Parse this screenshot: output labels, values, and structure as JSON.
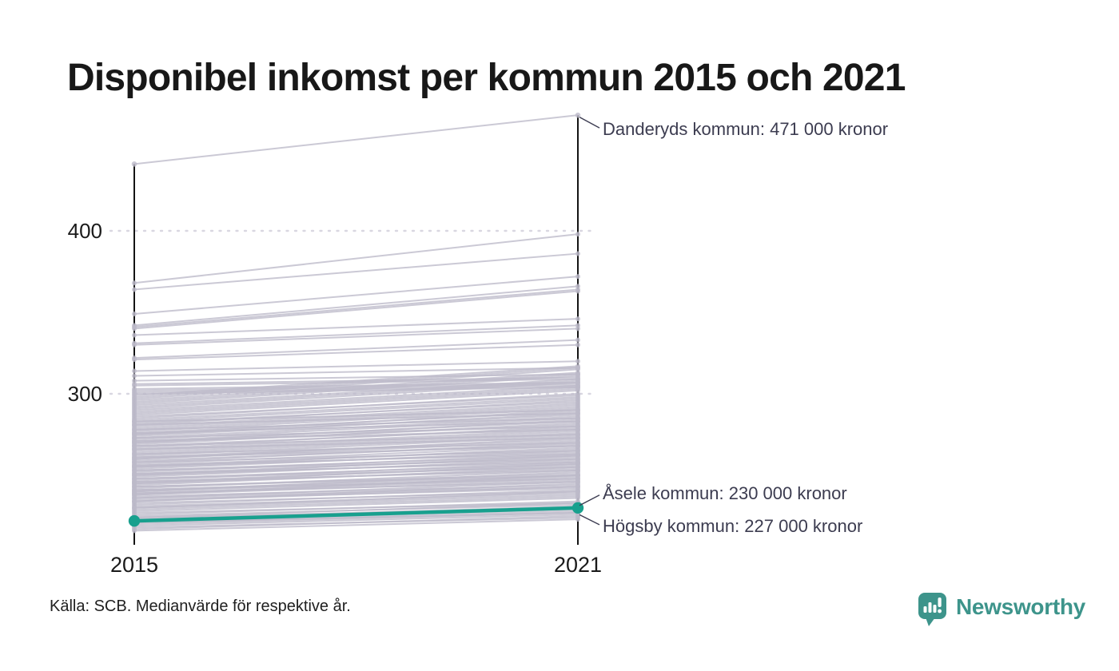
{
  "title": "Disponibel inkomst per kommun 2015 och 2021",
  "source": "Källa: SCB. Medianvärde för respektive år.",
  "branding": {
    "logo_text": "Newsworthy",
    "logo_icon": "newsworthy-bubble-barchart-icon",
    "brand_color": "#3d948b"
  },
  "colors": {
    "background": "#ffffff",
    "line_gray": "#bdbac9",
    "highlight_teal": "#18a08e",
    "axis_black": "#141414",
    "grid_gray": "#d9d7e1",
    "annotation_text": "#3c3c50"
  },
  "chart_data": {
    "type": "line",
    "subtype": "slope-chart",
    "title": "Disponibel inkomst per kommun 2015 och 2021",
    "x": [
      2015,
      2021
    ],
    "x_labels": [
      "2015",
      "2021"
    ],
    "y_ticks": [
      300,
      400
    ],
    "ylim": [
      207,
      480
    ],
    "y_unit": "tusen kronor (medianvärde disponibel inkomst)",
    "grid": "dotted horizontal lines at y ticks",
    "legend": "none",
    "annotations": [
      {
        "text": "Danderyds kommun: 471 000 kronor",
        "series": "Danderyds kommun",
        "year": 2021,
        "value": 471
      },
      {
        "text": "Åsele kommun: 230 000 kronor",
        "series": "Åsele kommun",
        "year": 2021,
        "value": 230
      },
      {
        "text": "Högsby kommun: 227 000 kronor",
        "series": "Högsby kommun",
        "year": 2021,
        "value": 227
      }
    ],
    "named_series": [
      {
        "name": "Danderyds kommun",
        "values": [
          441,
          471
        ],
        "highlighted": false
      },
      {
        "name": "Högsby kommun",
        "values": [
          221,
          227
        ],
        "highlighted": false
      },
      {
        "name": "Åsele kommun",
        "values": [
          222,
          230
        ],
        "highlighted": true
      }
    ],
    "background_series_note": "approx. 290 unlabeled municipality lines; estimated value pairs [v2015, v2021] in thousands of kronor",
    "background_series": [
      [
        368,
        398
      ],
      [
        364,
        386
      ],
      [
        349,
        372
      ],
      [
        342,
        366
      ],
      [
        341,
        364
      ],
      [
        340,
        363
      ],
      [
        336,
        346
      ],
      [
        331,
        342
      ],
      [
        330,
        340
      ],
      [
        322,
        333
      ],
      [
        321,
        330
      ],
      [
        314,
        320
      ],
      [
        311,
        316
      ],
      [
        308,
        312
      ],
      [
        306,
        310
      ],
      [
        305,
        309
      ],
      [
        303,
        307
      ],
      [
        302,
        306
      ],
      [
        301,
        305
      ],
      [
        300,
        304
      ],
      [
        216,
        223
      ],
      [
        217,
        225
      ],
      [
        218,
        224
      ],
      [
        219,
        226
      ],
      [
        220,
        227
      ],
      [
        221,
        228
      ],
      [
        222,
        229
      ],
      [
        223,
        231
      ],
      [
        224,
        230
      ],
      [
        224,
        233
      ],
      [
        225,
        232
      ],
      [
        226,
        234
      ],
      [
        227,
        233
      ],
      [
        228,
        236
      ],
      [
        229,
        237
      ],
      [
        230,
        238
      ],
      [
        230,
        240
      ],
      [
        231,
        239
      ],
      [
        232,
        241
      ],
      [
        233,
        240
      ],
      [
        234,
        243
      ],
      [
        234,
        245
      ],
      [
        235,
        242
      ],
      [
        236,
        246
      ],
      [
        236,
        243
      ],
      [
        237,
        244
      ],
      [
        238,
        247
      ],
      [
        238,
        250
      ],
      [
        239,
        248
      ],
      [
        239,
        246
      ],
      [
        240,
        249
      ],
      [
        240,
        252
      ],
      [
        241,
        250
      ],
      [
        241,
        248
      ],
      [
        242,
        253
      ],
      [
        243,
        251
      ],
      [
        243,
        250
      ],
      [
        244,
        255
      ],
      [
        245,
        254
      ],
      [
        245,
        257
      ],
      [
        246,
        256
      ],
      [
        246,
        253
      ],
      [
        247,
        258
      ],
      [
        248,
        257
      ],
      [
        248,
        255
      ],
      [
        249,
        260
      ],
      [
        250,
        259
      ],
      [
        250,
        262
      ],
      [
        251,
        261
      ],
      [
        251,
        258
      ],
      [
        252,
        263
      ],
      [
        253,
        262
      ],
      [
        253,
        260
      ],
      [
        254,
        265
      ],
      [
        255,
        264
      ],
      [
        255,
        267
      ],
      [
        256,
        266
      ],
      [
        256,
        263
      ],
      [
        257,
        268
      ],
      [
        258,
        270
      ],
      [
        258,
        265
      ],
      [
        259,
        269
      ],
      [
        260,
        271
      ],
      [
        260,
        273
      ],
      [
        261,
        272
      ],
      [
        261,
        268
      ],
      [
        262,
        274
      ],
      [
        263,
        275
      ],
      [
        263,
        270
      ],
      [
        264,
        276
      ],
      [
        265,
        277
      ],
      [
        266,
        278
      ],
      [
        266,
        273
      ],
      [
        267,
        280
      ],
      [
        268,
        279
      ],
      [
        268,
        275
      ],
      [
        269,
        282
      ],
      [
        270,
        281
      ],
      [
        270,
        284
      ],
      [
        271,
        283
      ],
      [
        271,
        278
      ],
      [
        272,
        285
      ],
      [
        273,
        286
      ],
      [
        273,
        280
      ],
      [
        274,
        288
      ],
      [
        275,
        287
      ],
      [
        275,
        290
      ],
      [
        276,
        289
      ],
      [
        276,
        283
      ],
      [
        277,
        291
      ],
      [
        278,
        292
      ],
      [
        278,
        285
      ],
      [
        279,
        293
      ],
      [
        280,
        294
      ],
      [
        281,
        296
      ],
      [
        281,
        288
      ],
      [
        282,
        295
      ],
      [
        283,
        297
      ],
      [
        283,
        290
      ],
      [
        284,
        298
      ],
      [
        285,
        300
      ],
      [
        286,
        299
      ],
      [
        287,
        302
      ],
      [
        288,
        303
      ],
      [
        289,
        304
      ],
      [
        290,
        305
      ],
      [
        291,
        307
      ],
      [
        292,
        308
      ],
      [
        293,
        309
      ],
      [
        294,
        311
      ],
      [
        295,
        312
      ],
      [
        296,
        313
      ],
      [
        297,
        315
      ],
      [
        298,
        316
      ],
      [
        299,
        317
      ]
    ]
  }
}
